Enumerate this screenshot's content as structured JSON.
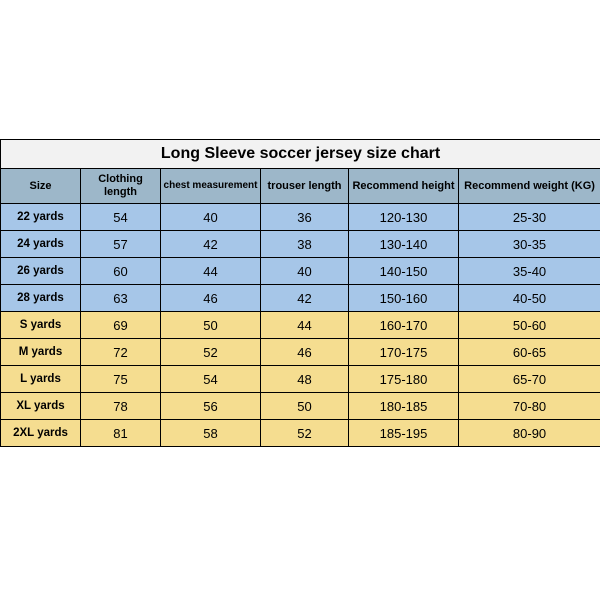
{
  "title": "Long Sleeve soccer jersey size chart",
  "colors": {
    "title_bg": "#f2f2f2",
    "header_bg": "#9db7c9",
    "group1_bg": "#a6c6e8",
    "group2_bg": "#f5dd90",
    "border": "#000000",
    "text": "#000000"
  },
  "cols": [
    {
      "key": "c0",
      "width": 80,
      "label": "Size"
    },
    {
      "key": "c1",
      "width": 80,
      "label": "Clothing length"
    },
    {
      "key": "c2",
      "width": 100,
      "label": "chest measurement"
    },
    {
      "key": "c3",
      "width": 88,
      "label": "trouser length"
    },
    {
      "key": "c4",
      "width": 110,
      "label": "Recommend height"
    },
    {
      "key": "c5",
      "width": 142,
      "label": "Recommend weight (KG)"
    }
  ],
  "rows": [
    {
      "group": 1,
      "cells": [
        "22 yards",
        "54",
        "40",
        "36",
        "120-130",
        "25-30"
      ]
    },
    {
      "group": 1,
      "cells": [
        "24 yards",
        "57",
        "42",
        "38",
        "130-140",
        "30-35"
      ]
    },
    {
      "group": 1,
      "cells": [
        "26 yards",
        "60",
        "44",
        "40",
        "140-150",
        "35-40"
      ]
    },
    {
      "group": 1,
      "cells": [
        "28 yards",
        "63",
        "46",
        "42",
        "150-160",
        "40-50"
      ]
    },
    {
      "group": 2,
      "cells": [
        "S yards",
        "69",
        "50",
        "44",
        "160-170",
        "50-60"
      ]
    },
    {
      "group": 2,
      "cells": [
        "M yards",
        "72",
        "52",
        "46",
        "170-175",
        "60-65"
      ]
    },
    {
      "group": 2,
      "cells": [
        "L yards",
        "75",
        "54",
        "48",
        "175-180",
        "65-70"
      ]
    },
    {
      "group": 2,
      "cells": [
        "XL yards",
        "78",
        "56",
        "50",
        "180-185",
        "70-80"
      ]
    },
    {
      "group": 2,
      "cells": [
        "2XL yards",
        "81",
        "58",
        "52",
        "185-195",
        "80-90"
      ]
    }
  ]
}
